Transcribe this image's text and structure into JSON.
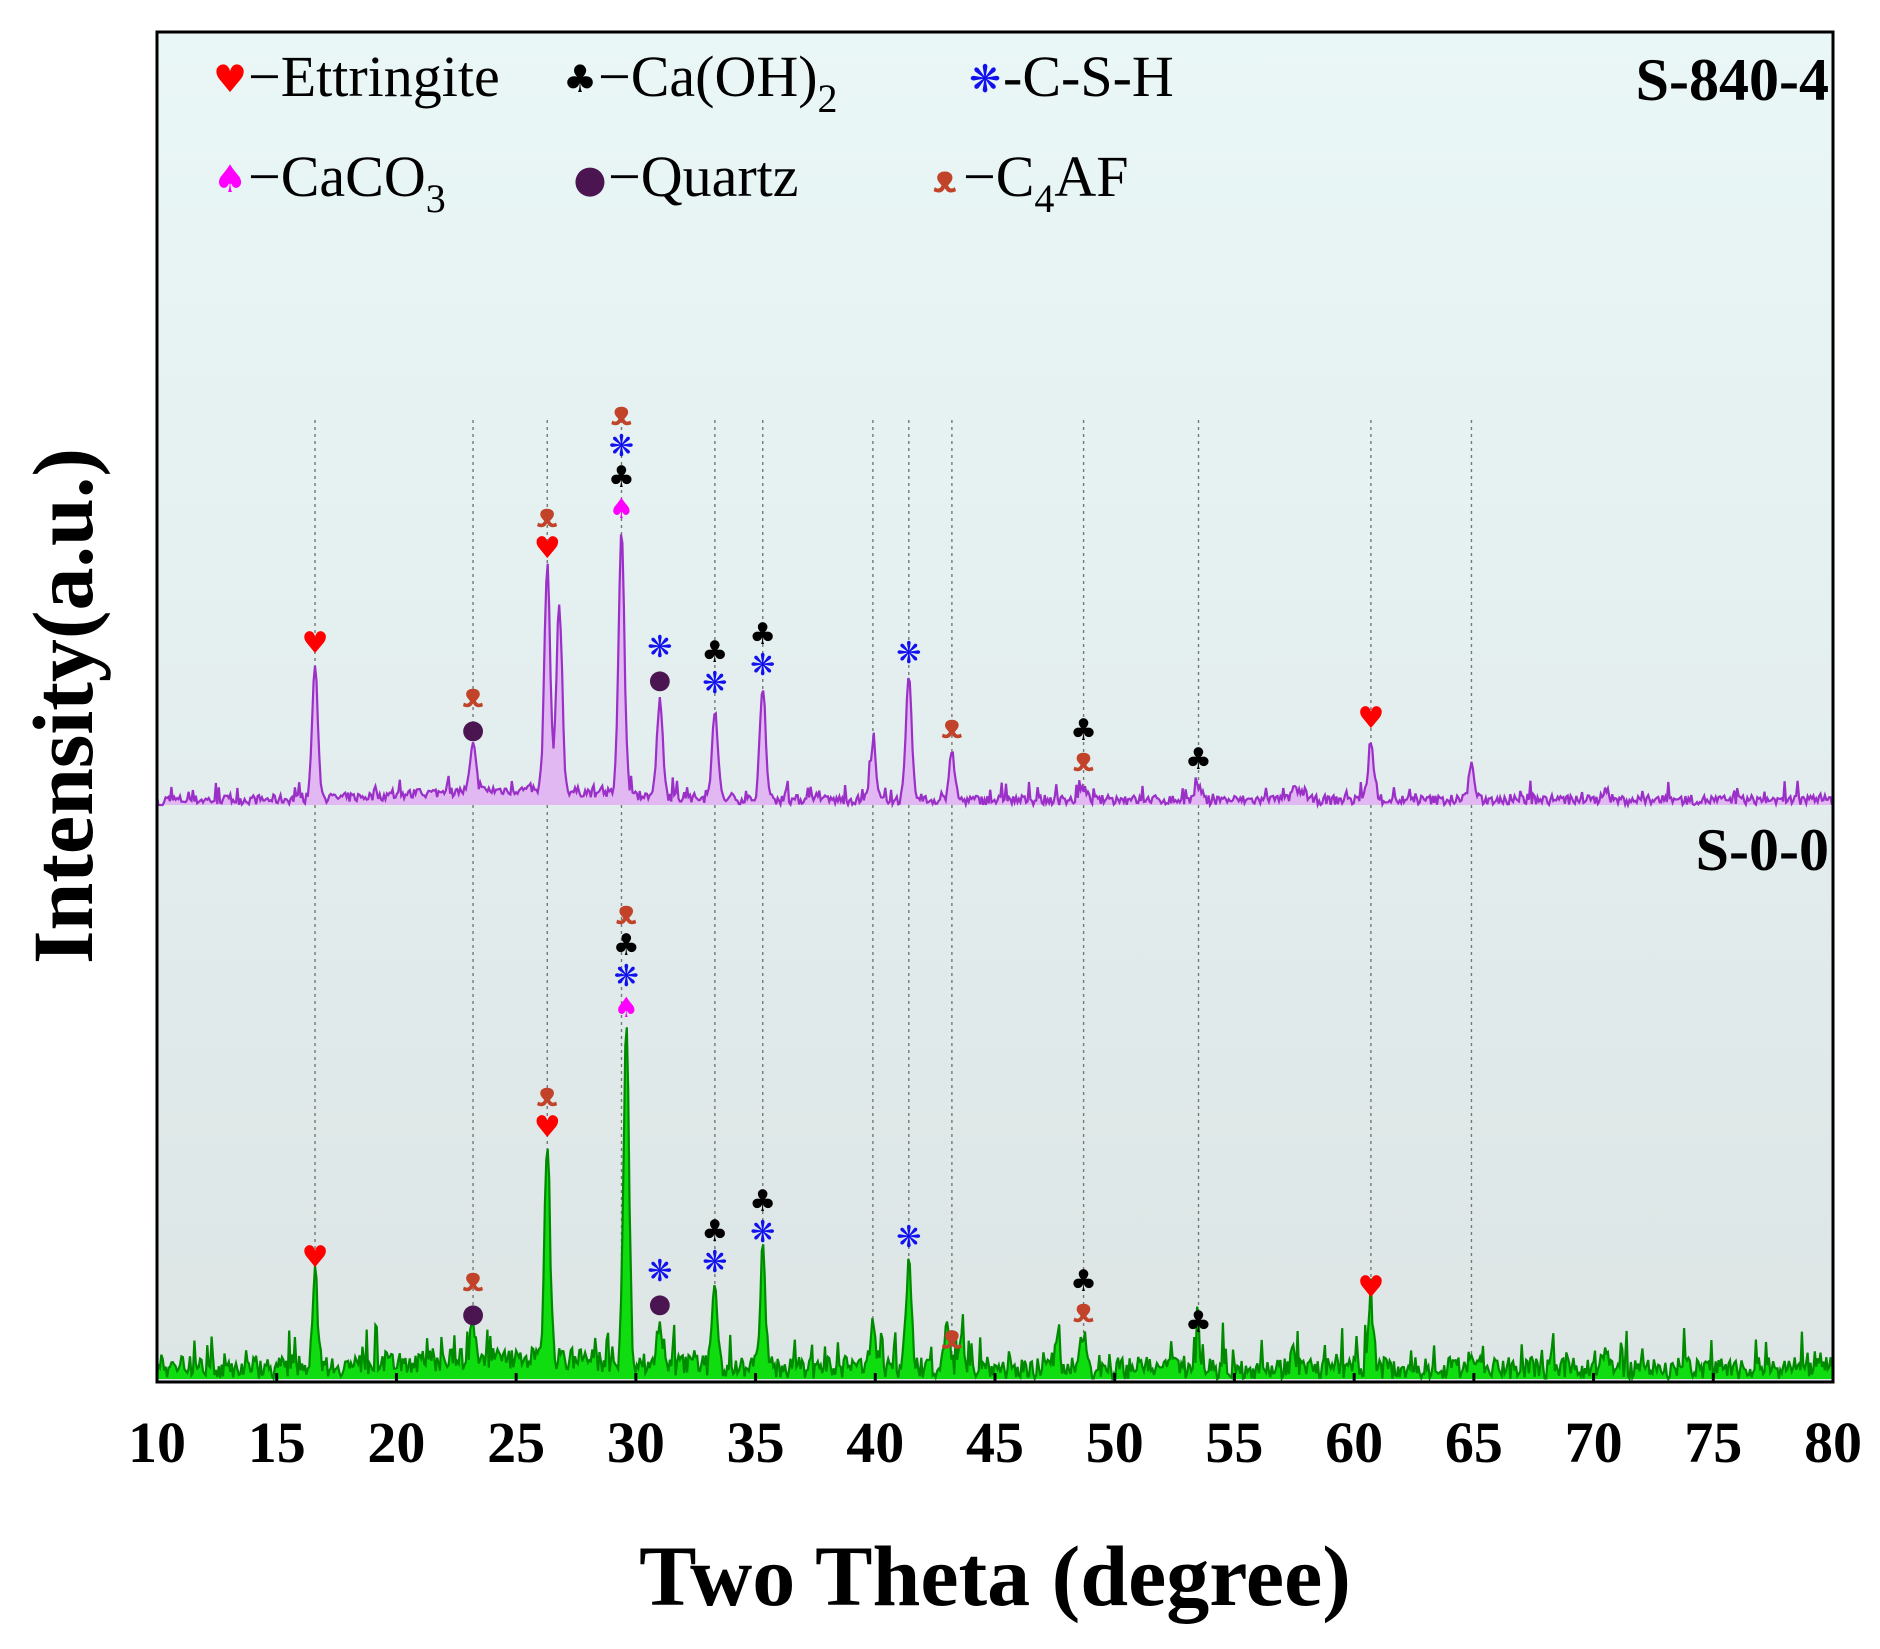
{
  "chart_data": {
    "type": "line",
    "xlabel": "Two Theta (degree)",
    "ylabel": "Intensity(a.u.)",
    "xlim": [
      10,
      80
    ],
    "xticks": [
      10,
      15,
      20,
      25,
      30,
      35,
      40,
      45,
      50,
      55,
      60,
      65,
      70,
      75,
      80
    ],
    "grid": false,
    "reference_lines_x": [
      16.6,
      23.2,
      26.3,
      29.4,
      33.3,
      35.3,
      39.9,
      41.4,
      43.2,
      48.7,
      53.5,
      60.7,
      64.9
    ],
    "legend": {
      "placement": "top-left",
      "entries": [
        {
          "phase": "ettringite",
          "symbol": "♥",
          "color": "#ff0000",
          "label": "−Ettringite"
        },
        {
          "phase": "caoh2",
          "symbol": "♣",
          "color": "#000000",
          "label": "−Ca(OH)",
          "sub": "2"
        },
        {
          "phase": "csh",
          "symbol": "❋",
          "color": "#1111ee",
          "label": "-C-S-H"
        },
        {
          "phase": "caco3",
          "symbol": "♠",
          "color": "#ff00ff",
          "label": "−CaCO",
          "sub": "3"
        },
        {
          "phase": "quartz",
          "symbol": "●",
          "color": "#4a1550",
          "label": "−Quartz"
        },
        {
          "phase": "c4af",
          "symbol": "ᴥ",
          "color": "#c0432a",
          "label": "−C",
          "sub": "4",
          "suffix": "AF"
        }
      ]
    },
    "series": [
      {
        "name": "S-840-4",
        "color": "#9a30c8",
        "fill": "#e2b8f2",
        "peaks": [
          {
            "x": 16.6,
            "y": 130
          },
          {
            "x": 23.2,
            "y": 45
          },
          {
            "x": 26.3,
            "y": 225
          },
          {
            "x": 26.8,
            "y": 185
          },
          {
            "x": 29.4,
            "y": 265
          },
          {
            "x": 31.0,
            "y": 95
          },
          {
            "x": 33.3,
            "y": 90
          },
          {
            "x": 35.3,
            "y": 108
          },
          {
            "x": 39.9,
            "y": 55
          },
          {
            "x": 41.4,
            "y": 120
          },
          {
            "x": 43.2,
            "y": 45
          },
          {
            "x": 48.7,
            "y": 12
          },
          {
            "x": 53.5,
            "y": 14
          },
          {
            "x": 57.5,
            "y": 14
          },
          {
            "x": 60.7,
            "y": 55
          },
          {
            "x": 64.9,
            "y": 35
          },
          {
            "x": 70.5,
            "y": 12
          }
        ],
        "markers": [
          {
            "x": 16.6,
            "phases": [
              "ettringite"
            ]
          },
          {
            "x": 23.2,
            "phases": [
              "quartz",
              "c4af"
            ]
          },
          {
            "x": 26.3,
            "phases": [
              "ettringite",
              "c4af"
            ]
          },
          {
            "x": 29.4,
            "phases": [
              "caco3",
              "caoh2",
              "csh",
              "c4af"
            ]
          },
          {
            "x": 31.0,
            "phases": [
              "quartz",
              "csh"
            ]
          },
          {
            "x": 33.3,
            "phases": [
              "csh",
              "caoh2"
            ]
          },
          {
            "x": 35.3,
            "phases": [
              "csh",
              "caoh2"
            ]
          },
          {
            "x": 41.4,
            "phases": [
              "csh"
            ]
          },
          {
            "x": 43.2,
            "phases": [
              "c4af"
            ]
          },
          {
            "x": 48.7,
            "phases": [
              "c4af",
              "caoh2"
            ]
          },
          {
            "x": 53.5,
            "phases": [
              "caoh2"
            ]
          },
          {
            "x": 60.7,
            "phases": [
              "ettringite"
            ]
          }
        ]
      },
      {
        "name": "S-0-0",
        "color": "#008a00",
        "fill": "#10dd10",
        "peaks": [
          {
            "x": 11.8,
            "y": 12
          },
          {
            "x": 16.6,
            "y": 90
          },
          {
            "x": 23.2,
            "y": 35
          },
          {
            "x": 26.3,
            "y": 220
          },
          {
            "x": 29.6,
            "y": 340
          },
          {
            "x": 31.0,
            "y": 45
          },
          {
            "x": 33.3,
            "y": 85
          },
          {
            "x": 35.3,
            "y": 115
          },
          {
            "x": 39.9,
            "y": 50
          },
          {
            "x": 41.4,
            "y": 110
          },
          {
            "x": 43.0,
            "y": 40
          },
          {
            "x": 43.6,
            "y": 40
          },
          {
            "x": 47.6,
            "y": 25
          },
          {
            "x": 48.7,
            "y": 35
          },
          {
            "x": 53.5,
            "y": 25
          },
          {
            "x": 57.5,
            "y": 15
          },
          {
            "x": 60.7,
            "y": 60
          },
          {
            "x": 64.9,
            "y": 20
          },
          {
            "x": 70.5,
            "y": 15
          }
        ],
        "markers": [
          {
            "x": 16.6,
            "phases": [
              "ettringite"
            ]
          },
          {
            "x": 23.2,
            "phases": [
              "quartz",
              "c4af"
            ]
          },
          {
            "x": 26.3,
            "phases": [
              "ettringite",
              "c4af"
            ]
          },
          {
            "x": 29.6,
            "phases": [
              "caco3",
              "csh",
              "caoh2",
              "c4af"
            ]
          },
          {
            "x": 31.0,
            "phases": [
              "quartz",
              "csh"
            ]
          },
          {
            "x": 33.3,
            "phases": [
              "csh",
              "caoh2"
            ]
          },
          {
            "x": 35.3,
            "phases": [
              "csh",
              "caoh2"
            ]
          },
          {
            "x": 41.4,
            "phases": [
              "csh"
            ]
          },
          {
            "x": 43.2,
            "phases": [
              "c4af"
            ]
          },
          {
            "x": 48.7,
            "phases": [
              "c4af",
              "caoh2"
            ]
          },
          {
            "x": 53.5,
            "phases": [
              "caoh2"
            ]
          },
          {
            "x": 60.7,
            "phases": [
              "ettringite"
            ]
          }
        ]
      }
    ]
  }
}
